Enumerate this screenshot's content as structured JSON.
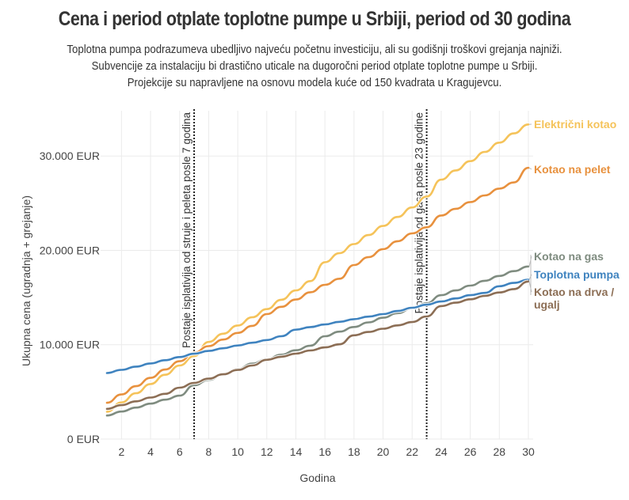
{
  "header": {
    "title": "Cena i period otplate toplotne pumpe u Srbiji, period od 30 godina",
    "subtitle_lines": [
      "Toplotna pumpa podrazumeva ubedljivo najveću početnu investiciju, ali su godišnji troškovi grejanja najniži.",
      "Subvencije za instalaciju bi drastično uticale na dugoročni period otplate toplotne pumpe u Srbiji.",
      "Projekcije su napravljene na osnovu modela kuće od 150 kvadrata u Kragujevcu."
    ]
  },
  "chart_data": {
    "type": "line",
    "title": "Cena i period otplate toplotne pumpe u Srbiji, period od 30 godina",
    "xlabel": "Godina",
    "ylabel": "Ukupna cena (ugradnja + grejanje)",
    "xlim": [
      1,
      30
    ],
    "ylim": [
      0,
      35000
    ],
    "x_ticks": [
      2,
      4,
      6,
      8,
      10,
      12,
      14,
      16,
      18,
      20,
      22,
      24,
      26,
      28,
      30
    ],
    "y_ticks": [
      0,
      10000,
      20000,
      30000
    ],
    "y_tick_labels": [
      "0 EUR",
      "10.000 EUR",
      "20.000 EUR",
      "30.000 EUR"
    ],
    "grid": true,
    "legend": "direct labels at line ends (right)",
    "x": [
      1,
      2,
      3,
      4,
      5,
      6,
      7,
      8,
      9,
      10,
      11,
      12,
      13,
      14,
      15,
      16,
      17,
      18,
      19,
      20,
      21,
      22,
      23,
      24,
      25,
      26,
      27,
      28,
      29,
      30
    ],
    "series": [
      {
        "name": "Električni kotao",
        "color": "#f5c35a",
        "label_lines": [
          "Električni kotao"
        ],
        "values": [
          2900,
          3880,
          4860,
          5840,
          6820,
          7800,
          8800,
          10300,
          11170,
          12040,
          12910,
          13780,
          14770,
          15760,
          16750,
          18750,
          19710,
          20670,
          21630,
          22590,
          23550,
          24550,
          25700,
          27500,
          28480,
          29460,
          30440,
          31420,
          32400,
          33350
        ]
      },
      {
        "name": "Kotao na pelet",
        "color": "#e8913e",
        "label_lines": [
          "Kotao na pelet"
        ],
        "values": [
          3850,
          4730,
          5610,
          6490,
          7370,
          8250,
          9150,
          9850,
          10550,
          11250,
          12000,
          13250,
          14020,
          14790,
          15560,
          16350,
          17000,
          18450,
          19290,
          20130,
          20970,
          21800,
          22450,
          23700,
          24410,
          25120,
          25830,
          26550,
          27200,
          28750
        ]
      },
      {
        "name": "Kotao na gas",
        "color": "#7f8c80",
        "label_lines": [
          "Kotao na gas"
        ],
        "values": [
          2500,
          2920,
          3340,
          3760,
          4180,
          4600,
          5700,
          6270,
          6840,
          7410,
          8000,
          8480,
          8950,
          9420,
          9900,
          10900,
          11390,
          11880,
          12370,
          12860,
          13350,
          13850,
          14400,
          15250,
          15760,
          16270,
          16780,
          17290,
          17800,
          18300
        ]
      },
      {
        "name": "Toplotna pumpa",
        "color": "#3f83bf",
        "label_lines": [
          "Toplotna pumpa"
        ],
        "values": [
          7000,
          7340,
          7680,
          8020,
          8360,
          8700,
          9050,
          9340,
          9630,
          9920,
          10210,
          10500,
          10900,
          11600,
          11870,
          12150,
          12430,
          12710,
          12980,
          13250,
          13580,
          13920,
          14250,
          14580,
          14910,
          15250,
          15500,
          16200,
          16550,
          16900
        ]
      },
      {
        "name": "Kotao na drva / ugalj",
        "color": "#8c6e55",
        "label_lines": [
          "Kotao na drva /",
          "ugalj"
        ],
        "values": [
          3200,
          3600,
          4000,
          4400,
          4800,
          5450,
          5950,
          6410,
          6870,
          7330,
          7800,
          8400,
          8730,
          9060,
          9390,
          9720,
          10050,
          11000,
          11350,
          11700,
          12050,
          12400,
          13000,
          14100,
          14460,
          14820,
          15180,
          15540,
          15900,
          16700
        ]
      }
    ],
    "annotations": [
      {
        "x": 7,
        "text": "Postaje isplativija od struje i peleta posle 7 godina"
      },
      {
        "x": 23,
        "text": "Postaje isplativija od gasa posle 23 godine"
      }
    ]
  }
}
